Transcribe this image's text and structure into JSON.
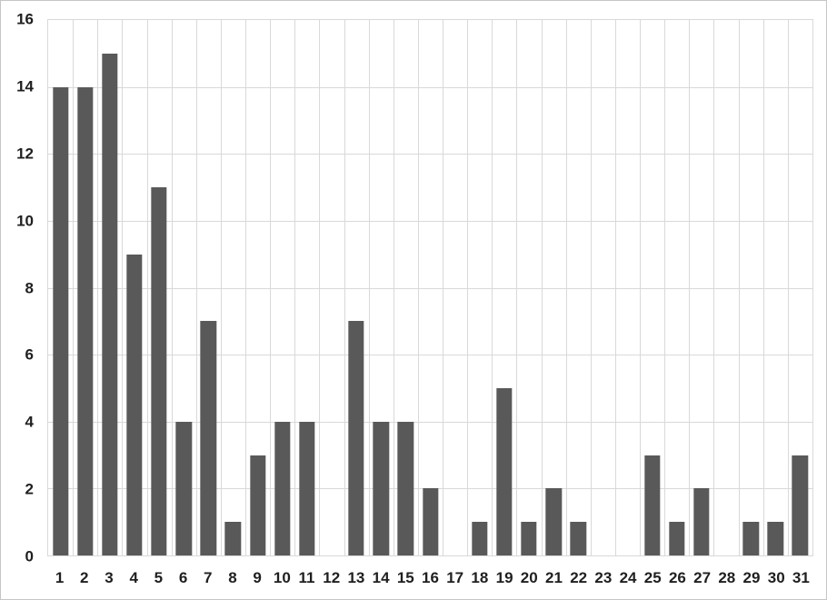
{
  "chart_data": {
    "type": "bar",
    "categories": [
      "1",
      "2",
      "3",
      "4",
      "5",
      "6",
      "7",
      "8",
      "9",
      "10",
      "11",
      "12",
      "13",
      "14",
      "15",
      "16",
      "17",
      "18",
      "19",
      "20",
      "21",
      "22",
      "23",
      "24",
      "25",
      "26",
      "27",
      "28",
      "29",
      "30",
      "31"
    ],
    "values": [
      14,
      14,
      15,
      9,
      11,
      4,
      7,
      1,
      3,
      4,
      4,
      0,
      7,
      4,
      4,
      2,
      0,
      1,
      5,
      1,
      2,
      1,
      0,
      0,
      3,
      1,
      2,
      0,
      1,
      1,
      3
    ],
    "title": "",
    "xlabel": "",
    "ylabel": "",
    "ylim": [
      0,
      16
    ],
    "ytick_step": 2,
    "ytick_labels": [
      "0",
      "2",
      "4",
      "6",
      "8",
      "10",
      "12",
      "14",
      "16"
    ],
    "grid": "both",
    "legend": "none",
    "colors": {
      "bar": "#595959",
      "gridline": "#d9d9d9",
      "label_text": "#1f1f1f",
      "background": "#ffffff",
      "frame_border": "#c8c6c4"
    }
  }
}
